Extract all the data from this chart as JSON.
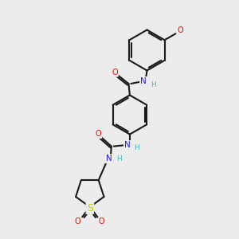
{
  "bg_color": "#ececec",
  "bond_color": "#1a1a1a",
  "bond_width": 1.5,
  "atom_colors": {
    "C": "#1a1a1a",
    "N": "#2020dd",
    "O": "#dd1100",
    "S": "#cccc00",
    "H": "#44bbbb"
  },
  "font_size_atom": 7.5,
  "font_size_h": 6.5,
  "font_size_o": 7.0
}
